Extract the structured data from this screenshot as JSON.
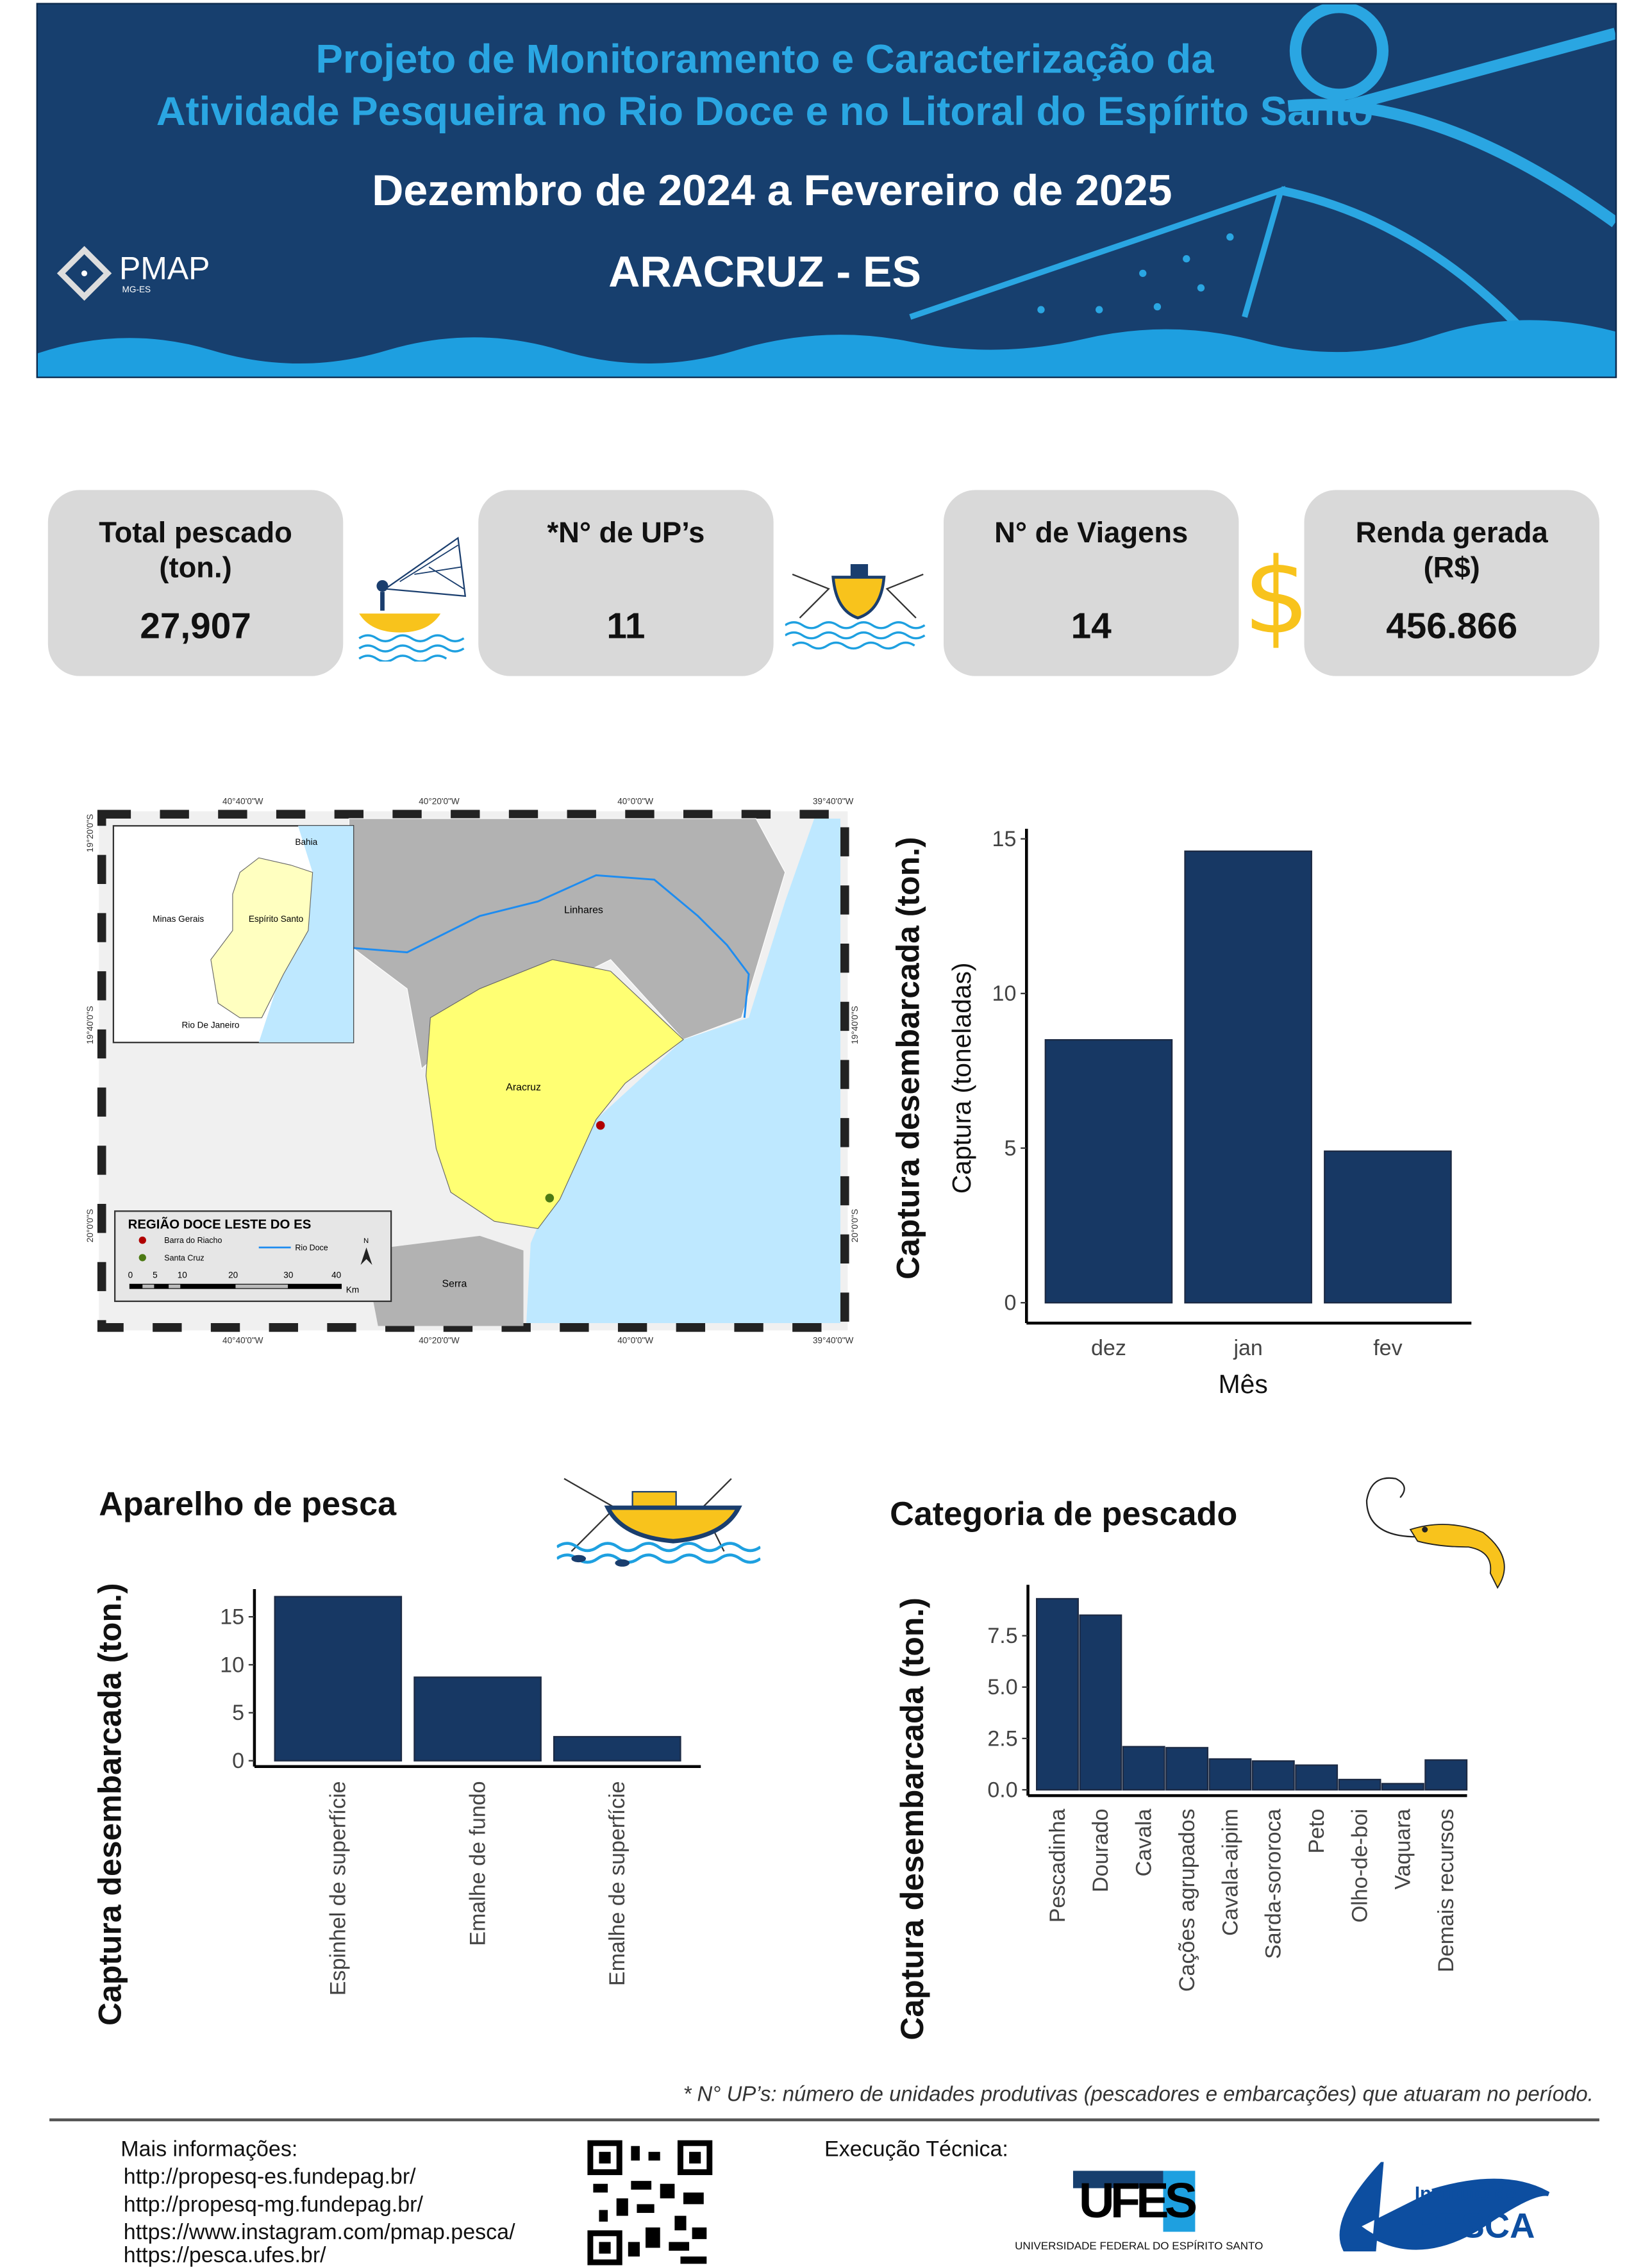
{
  "header": {
    "title_line1": "Projeto de Monitoramento e Caracterização da",
    "title_line2": "Atividade Pesqueira no Rio Doce e no Litoral do Espírito Santo",
    "period": "Dezembro de 2024 a Fevereiro de 2025",
    "location": "ARACRUZ - ES",
    "logo_text": "PMAP",
    "logo_sub": "MG-ES"
  },
  "stats": [
    {
      "label": "Total pescado (ton.)",
      "value": "27,907"
    },
    {
      "label": "*N° de UP’s",
      "value": "11"
    },
    {
      "label": "N°  de Viagens",
      "value": "14"
    },
    {
      "label": "Renda gerada (R$)",
      "value": "456.866"
    }
  ],
  "map": {
    "top_ticks": [
      "40°40'0\"W",
      "40°20'0\"W",
      "40°0'0\"W",
      "39°40'0\"W"
    ],
    "side_ticks": [
      "19°20'0\"S",
      "19°40'0\"S",
      "20°0'0\"S"
    ],
    "places": {
      "linhares": "Linhares",
      "aracruz": "Aracruz",
      "serra": "Serra",
      "bahia": "Bahia",
      "mg": "Minas Gerais",
      "es": "Espírito Santo",
      "rj": "Rio De Janeiro"
    },
    "legend": {
      "title": "REGIÃO DOCE LESTE DO ES",
      "items": [
        "Barra do Riacho",
        "Santa Cruz",
        "Rio Doce"
      ],
      "scale": [
        "0",
        "5",
        "10",
        "20",
        "30",
        "40"
      ],
      "unit": "Km",
      "north": "N"
    },
    "colors": {
      "aracruz": "#ffff73",
      "neighbors": "#b2b2b2",
      "sea": "#bee8ff",
      "river": "#1e8cf0",
      "barra": "#b00000",
      "santa_cruz": "#4c7a14"
    }
  },
  "aparelho": {
    "title": "Aparelho de pesca"
  },
  "categoria": {
    "title": "Categoria de pescado"
  },
  "chart_data": [
    {
      "type": "bar",
      "title": "",
      "xlabel": "Mês",
      "ylabel": "Captura (toneladas)",
      "outer_label": "Captura desembarcada (ton.)",
      "categories": [
        "dez",
        "jan",
        "fev"
      ],
      "values": [
        8.5,
        14.6,
        4.9
      ],
      "yticks": [
        "0",
        "5",
        "10",
        "15"
      ],
      "ylim": [
        0,
        15.3
      ],
      "color": "#173864"
    },
    {
      "type": "bar",
      "title": "Aparelho de pesca",
      "ylabel": "Captura desembarcada (ton.)",
      "categories": [
        "Espinhel de superfície",
        "Emalhe de fundo",
        "Emalhe de superfície"
      ],
      "values": [
        17.1,
        8.7,
        2.5
      ],
      "yticks": [
        "0",
        "5",
        "10",
        "15"
      ],
      "ylim": [
        0,
        17.6
      ],
      "color": "#173864"
    },
    {
      "type": "bar",
      "title": "Categoria de pescado",
      "ylabel": "Captura desembarcada (ton.)",
      "categories": [
        "Pescadinha",
        "Dourado",
        "Cavala",
        "Cações agrupados",
        "Cavala-aipim",
        "Sarda-sororoca",
        "Peto",
        "Olho-de-boi",
        "Vaquara",
        "Demais recursos"
      ],
      "values": [
        9.3,
        8.5,
        2.1,
        2.05,
        1.5,
        1.4,
        1.2,
        0.5,
        0.3,
        1.45
      ],
      "yticks": [
        "0.0",
        "2.5",
        "5.0",
        "7.5"
      ],
      "ylim": [
        0,
        9.5
      ],
      "color": "#173864"
    }
  ],
  "footnote": "* N° UP’s: número de unidades produtivas (pescadores e embarcações) que atuaram no período.",
  "footer": {
    "more_info": "Mais informações:",
    "links": [
      "http://propesq-es.fundepag.br/",
      "http://propesq-mg.fundepag.br/",
      "https://www.instagram.com/pmap.pesca/",
      "https://pesca.ufes.br/"
    ],
    "exec": "Execução Técnica:",
    "ufes_logo": "UFES",
    "ufes_name": "UNIVERSIDADE FEDERAL DO ESPÍRITO SANTO",
    "pesca_logo_line1": "Instituto de",
    "pesca_logo_line2": "PESCA"
  }
}
